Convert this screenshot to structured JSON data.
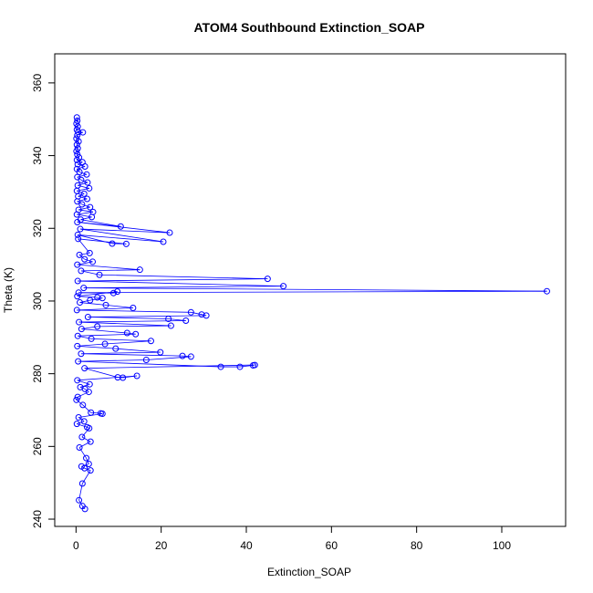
{
  "chart_data": {
    "type": "line",
    "title": "ATOM4 Southbound Extinction_SOAP",
    "xlabel": "Extinction_SOAP",
    "ylabel": "Theta (K)",
    "xlim": [
      -5,
      115
    ],
    "ylim": [
      238,
      368
    ],
    "xticks": [
      0,
      20,
      40,
      60,
      80,
      100
    ],
    "yticks": [
      240,
      260,
      280,
      300,
      320,
      340,
      360
    ],
    "grid": false,
    "legend": "none",
    "series_color": "#0000ff",
    "series": [
      {
        "points": [
          [
            0.2,
            350.5
          ],
          [
            0.3,
            349.6
          ],
          [
            0.1,
            348.8
          ],
          [
            0.4,
            348.0
          ],
          [
            0.2,
            347.1
          ],
          [
            0.5,
            346.5
          ],
          [
            1.6,
            346.4
          ],
          [
            0.3,
            345.6
          ],
          [
            0.1,
            344.7
          ],
          [
            0.6,
            343.9
          ],
          [
            0.2,
            343.0
          ],
          [
            0.4,
            342.0
          ],
          [
            0.1,
            341.2
          ],
          [
            0.3,
            340.3
          ],
          [
            0.7,
            339.5
          ],
          [
            0.2,
            338.8
          ],
          [
            1.5,
            338.2
          ],
          [
            0.4,
            337.6
          ],
          [
            2.1,
            337.0
          ],
          [
            0.2,
            336.3
          ],
          [
            0.8,
            335.5
          ],
          [
            2.5,
            334.8
          ],
          [
            0.3,
            334.1
          ],
          [
            1.2,
            333.3
          ],
          [
            2.7,
            332.6
          ],
          [
            0.4,
            331.8
          ],
          [
            3.1,
            331.0
          ],
          [
            0.2,
            330.3
          ],
          [
            1.9,
            329.5
          ],
          [
            0.5,
            328.8
          ],
          [
            2.6,
            328.1
          ],
          [
            0.3,
            327.4
          ],
          [
            1.4,
            326.6
          ],
          [
            3.3,
            325.8
          ],
          [
            0.6,
            325.1
          ],
          [
            4.0,
            324.5
          ],
          [
            0.2,
            323.8
          ],
          [
            3.7,
            323.1
          ],
          [
            1.1,
            322.4
          ],
          [
            10.5,
            320.5
          ],
          [
            0.3,
            321.7
          ],
          [
            22.0,
            318.8
          ],
          [
            1.0,
            319.8
          ],
          [
            20.5,
            316.3
          ],
          [
            0.4,
            318.2
          ],
          [
            8.5,
            315.8
          ],
          [
            11.8,
            315.7
          ],
          [
            0.5,
            317.1
          ],
          [
            3.2,
            313.2
          ],
          [
            0.8,
            312.7
          ],
          [
            2.0,
            311.5
          ],
          [
            3.9,
            310.8
          ],
          [
            0.3,
            310.0
          ],
          [
            15.0,
            308.6
          ],
          [
            1.2,
            308.3
          ],
          [
            5.5,
            307.2
          ],
          [
            45.0,
            306.1
          ],
          [
            0.4,
            305.5
          ],
          [
            48.7,
            304.1
          ],
          [
            1.8,
            303.6
          ],
          [
            110.6,
            302.7
          ],
          [
            0.6,
            302.3
          ],
          [
            8.8,
            302.2
          ],
          [
            9.7,
            302.6
          ],
          [
            0.3,
            301.3
          ],
          [
            5.0,
            301.0
          ],
          [
            6.2,
            300.8
          ],
          [
            3.3,
            300.2
          ],
          [
            0.9,
            299.6
          ],
          [
            7.0,
            298.9
          ],
          [
            13.4,
            298.1
          ],
          [
            0.2,
            297.5
          ],
          [
            27.0,
            296.9
          ],
          [
            29.5,
            296.3
          ],
          [
            30.6,
            296.0
          ],
          [
            2.8,
            295.6
          ],
          [
            21.7,
            295.1
          ],
          [
            25.8,
            294.6
          ],
          [
            0.7,
            294.2
          ],
          [
            22.3,
            293.2
          ],
          [
            5.0,
            293.0
          ],
          [
            1.3,
            292.3
          ],
          [
            12.0,
            291.2
          ],
          [
            14.0,
            290.9
          ],
          [
            0.4,
            290.4
          ],
          [
            3.6,
            289.6
          ],
          [
            17.6,
            289.0
          ],
          [
            6.8,
            288.2
          ],
          [
            0.3,
            287.6
          ],
          [
            9.3,
            286.9
          ],
          [
            19.8,
            285.9
          ],
          [
            1.2,
            285.5
          ],
          [
            25.0,
            284.9
          ],
          [
            27.0,
            284.7
          ],
          [
            16.5,
            283.8
          ],
          [
            0.5,
            283.4
          ],
          [
            34.0,
            281.9
          ],
          [
            38.5,
            281.9
          ],
          [
            41.6,
            282.3
          ],
          [
            42.0,
            282.4
          ],
          [
            2.0,
            281.5
          ],
          [
            9.8,
            279.0
          ],
          [
            11.0,
            278.9
          ],
          [
            14.3,
            279.4
          ],
          [
            0.3,
            278.2
          ],
          [
            3.2,
            277.1
          ],
          [
            1.0,
            276.3
          ],
          [
            2.1,
            275.8
          ],
          [
            3.0,
            275.0
          ],
          [
            0.4,
            273.6
          ],
          [
            0.1,
            272.8
          ],
          [
            1.6,
            271.4
          ],
          [
            3.5,
            269.3
          ],
          [
            5.8,
            269.1
          ],
          [
            6.2,
            269.0
          ],
          [
            0.6,
            268.0
          ],
          [
            1.9,
            266.9
          ],
          [
            0.2,
            266.2
          ],
          [
            2.6,
            265.3
          ],
          [
            3.1,
            265.0
          ],
          [
            1.4,
            262.6
          ],
          [
            3.4,
            261.3
          ],
          [
            0.8,
            259.7
          ],
          [
            2.4,
            256.8
          ],
          [
            3.0,
            255.2
          ],
          [
            1.3,
            254.5
          ],
          [
            2.0,
            254.0
          ],
          [
            3.4,
            253.4
          ],
          [
            1.5,
            249.8
          ],
          [
            0.7,
            245.2
          ],
          [
            1.5,
            243.6
          ],
          [
            2.1,
            242.8
          ]
        ]
      }
    ]
  }
}
